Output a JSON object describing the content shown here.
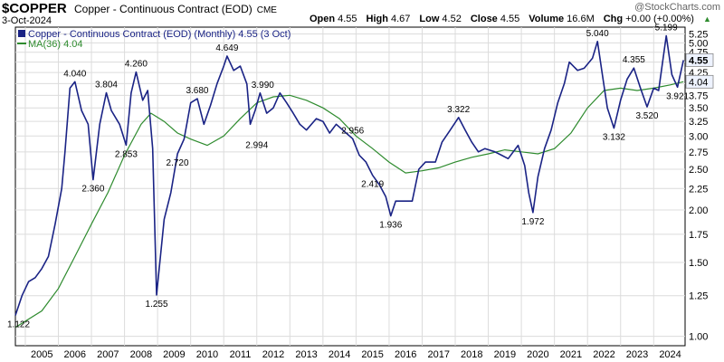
{
  "header": {
    "symbol": "$COPPER",
    "description": "Copper - Continuous Contract (EOD)",
    "exchange": "CME",
    "date": "3-Oct-2024",
    "watermark": "@StockCharts.com",
    "ohlc": [
      {
        "label": "Open",
        "value": "4.55"
      },
      {
        "label": "High",
        "value": "4.67"
      },
      {
        "label": "Low",
        "value": "4.52"
      },
      {
        "label": "Close",
        "value": "4.55"
      },
      {
        "label": "Volume",
        "value": "16.6M"
      },
      {
        "label": "Chg",
        "value": "+0.00 (+0.00%)"
      }
    ],
    "chg_icon": "up-arrow-icon"
  },
  "legend": {
    "price": "Copper - Continuous Contract (EOD) (Monthly) 4.55 (3 Oct)",
    "ma": "MA(36) 4.04"
  },
  "colors": {
    "price": "#1a2385",
    "ma": "#2e8b2e",
    "grid": "#dcdcdc",
    "axis": "#000000",
    "callout_bg": "#eef3ff"
  },
  "chart_data": {
    "type": "line",
    "title": "$COPPER",
    "y_scale": "log",
    "ylim": [
      0.95,
      5.45
    ],
    "xlim": [
      2004.7,
      2024.95
    ],
    "y_ticks": [
      1.0,
      1.25,
      1.5,
      1.75,
      2.0,
      2.25,
      2.5,
      2.75,
      3.0,
      3.25,
      3.5,
      3.75,
      4.0,
      4.25,
      4.5,
      4.75,
      5.0,
      5.25
    ],
    "x_ticks": [
      "2005",
      "2006",
      "2007",
      "2008",
      "2009",
      "2010",
      "2011",
      "2012",
      "2013",
      "2014",
      "2015",
      "2016",
      "2017",
      "2018",
      "2019",
      "2020",
      "2021",
      "2022",
      "2023",
      "2024"
    ],
    "price_axis_labels": {
      "last": "4.55",
      "ma": "4.04"
    },
    "series": [
      {
        "name": "Copper - Continuous Contract (EOD) (Monthly)",
        "x": [
          2004.7,
          2004.9,
          2005.1,
          2005.3,
          2005.5,
          2005.7,
          2005.9,
          2006.1,
          2006.2,
          2006.35,
          2006.5,
          2006.7,
          2006.9,
          2007.05,
          2007.25,
          2007.45,
          2007.6,
          2007.85,
          2008.05,
          2008.2,
          2008.35,
          2008.55,
          2008.7,
          2008.85,
          2008.97,
          2009.2,
          2009.4,
          2009.6,
          2009.8,
          2010.0,
          2010.2,
          2010.4,
          2010.6,
          2010.8,
          2011.0,
          2011.1,
          2011.3,
          2011.5,
          2011.7,
          2011.8,
          2011.95,
          2012.1,
          2012.3,
          2012.5,
          2012.7,
          2012.9,
          2013.1,
          2013.3,
          2013.5,
          2013.8,
          2014.0,
          2014.2,
          2014.4,
          2014.6,
          2014.9,
          2015.1,
          2015.3,
          2015.5,
          2015.7,
          2015.9,
          2016.05,
          2016.2,
          2016.45,
          2016.7,
          2016.9,
          2017.1,
          2017.4,
          2017.6,
          2017.85,
          2018.1,
          2018.3,
          2018.5,
          2018.7,
          2018.9,
          2019.2,
          2019.4,
          2019.6,
          2019.9,
          2020.1,
          2020.22,
          2020.35,
          2020.5,
          2020.7,
          2020.9,
          2021.1,
          2021.3,
          2021.45,
          2021.7,
          2021.9,
          2022.15,
          2022.3,
          2022.45,
          2022.6,
          2022.8,
          2023.0,
          2023.2,
          2023.4,
          2023.6,
          2023.8,
          2024.0,
          2024.15,
          2024.38,
          2024.55,
          2024.72,
          2024.9
        ],
        "values": [
          1.122,
          1.25,
          1.35,
          1.38,
          1.45,
          1.55,
          1.85,
          2.25,
          2.75,
          3.9,
          4.04,
          3.45,
          3.2,
          2.36,
          3.2,
          3.804,
          3.45,
          3.2,
          2.853,
          3.8,
          4.26,
          3.65,
          3.85,
          2.8,
          1.255,
          1.9,
          2.2,
          2.72,
          2.95,
          3.6,
          3.68,
          3.2,
          3.55,
          4.0,
          4.4,
          4.649,
          4.3,
          4.4,
          3.99,
          3.2,
          3.45,
          3.8,
          3.4,
          3.5,
          3.8,
          3.6,
          3.4,
          3.2,
          3.1,
          3.3,
          3.25,
          3.05,
          3.2,
          3.1,
          2.956,
          2.7,
          2.6,
          2.419,
          2.3,
          2.15,
          1.936,
          2.1,
          2.1,
          2.1,
          2.5,
          2.6,
          2.6,
          2.9,
          3.1,
          3.322,
          3.1,
          2.9,
          2.75,
          2.8,
          2.75,
          2.7,
          2.65,
          2.85,
          2.55,
          2.2,
          1.972,
          2.4,
          2.8,
          3.1,
          3.6,
          4.0,
          4.5,
          4.3,
          4.35,
          4.6,
          5.04,
          4.2,
          3.5,
          3.132,
          3.65,
          4.1,
          4.355,
          3.9,
          3.52,
          3.9,
          3.85,
          5.199,
          4.2,
          3.921,
          4.55
        ]
      },
      {
        "name": "MA(36)",
        "x": [
          2004.7,
          2005.5,
          2006.0,
          2006.5,
          2007.0,
          2007.5,
          2008.0,
          2008.5,
          2008.8,
          2009.2,
          2009.6,
          2010.0,
          2010.5,
          2011.0,
          2011.5,
          2012.0,
          2012.5,
          2013.0,
          2013.5,
          2014.0,
          2014.5,
          2015.0,
          2015.5,
          2016.0,
          2016.5,
          2017.0,
          2017.5,
          2018.0,
          2018.5,
          2019.0,
          2019.5,
          2020.0,
          2020.5,
          2021.0,
          2021.5,
          2022.0,
          2022.5,
          2023.0,
          2023.5,
          2024.0,
          2024.5,
          2024.9
        ],
        "values": [
          1.05,
          1.15,
          1.3,
          1.55,
          1.85,
          2.2,
          2.7,
          3.2,
          3.4,
          3.25,
          3.05,
          2.95,
          2.85,
          3.0,
          3.3,
          3.6,
          3.72,
          3.75,
          3.65,
          3.5,
          3.3,
          3.0,
          2.8,
          2.6,
          2.45,
          2.48,
          2.52,
          2.6,
          2.67,
          2.72,
          2.78,
          2.75,
          2.72,
          2.8,
          3.05,
          3.5,
          3.85,
          3.9,
          3.85,
          3.9,
          3.97,
          4.04
        ]
      }
    ],
    "annotations": [
      {
        "label": "1.122",
        "x": 2004.7,
        "y": 1.122,
        "pos": "below"
      },
      {
        "label": "4.040",
        "x": 2006.5,
        "y": 4.04,
        "pos": "above"
      },
      {
        "label": "2.360",
        "x": 2007.05,
        "y": 2.36,
        "pos": "below"
      },
      {
        "label": "3.804",
        "x": 2007.45,
        "y": 3.804,
        "pos": "above"
      },
      {
        "label": "2.853",
        "x": 2008.05,
        "y": 2.853,
        "pos": "below"
      },
      {
        "label": "4.260",
        "x": 2008.35,
        "y": 4.26,
        "pos": "above"
      },
      {
        "label": "1.255",
        "x": 2008.97,
        "y": 1.255,
        "pos": "below"
      },
      {
        "label": "2.720",
        "x": 2009.6,
        "y": 2.72,
        "pos": "below"
      },
      {
        "label": "3.680",
        "x": 2010.2,
        "y": 3.68,
        "pos": "above"
      },
      {
        "label": "4.649",
        "x": 2011.1,
        "y": 4.649,
        "pos": "above"
      },
      {
        "label": "3.990",
        "x": 2011.7,
        "y": 3.99,
        "pos": "right"
      },
      {
        "label": "2.994",
        "x": 2012.0,
        "y": 2.994,
        "pos": "below"
      },
      {
        "label": "2.956",
        "x": 2014.9,
        "y": 2.956,
        "pos": "above"
      },
      {
        "label": "2.419",
        "x": 2015.5,
        "y": 2.419,
        "pos": "below"
      },
      {
        "label": "1.936",
        "x": 2016.05,
        "y": 1.936,
        "pos": "below"
      },
      {
        "label": "3.322",
        "x": 2018.1,
        "y": 3.322,
        "pos": "above"
      },
      {
        "label": "1.972",
        "x": 2020.35,
        "y": 1.972,
        "pos": "below"
      },
      {
        "label": "5.040",
        "x": 2022.3,
        "y": 5.04,
        "pos": "above"
      },
      {
        "label": "3.132",
        "x": 2022.8,
        "y": 3.132,
        "pos": "below"
      },
      {
        "label": "4.355",
        "x": 2023.4,
        "y": 4.355,
        "pos": "above"
      },
      {
        "label": "3.520",
        "x": 2023.8,
        "y": 3.52,
        "pos": "below"
      },
      {
        "label": "5.199",
        "x": 2024.38,
        "y": 5.199,
        "pos": "above"
      },
      {
        "label": "3.921",
        "x": 2024.72,
        "y": 3.921,
        "pos": "below"
      }
    ]
  }
}
